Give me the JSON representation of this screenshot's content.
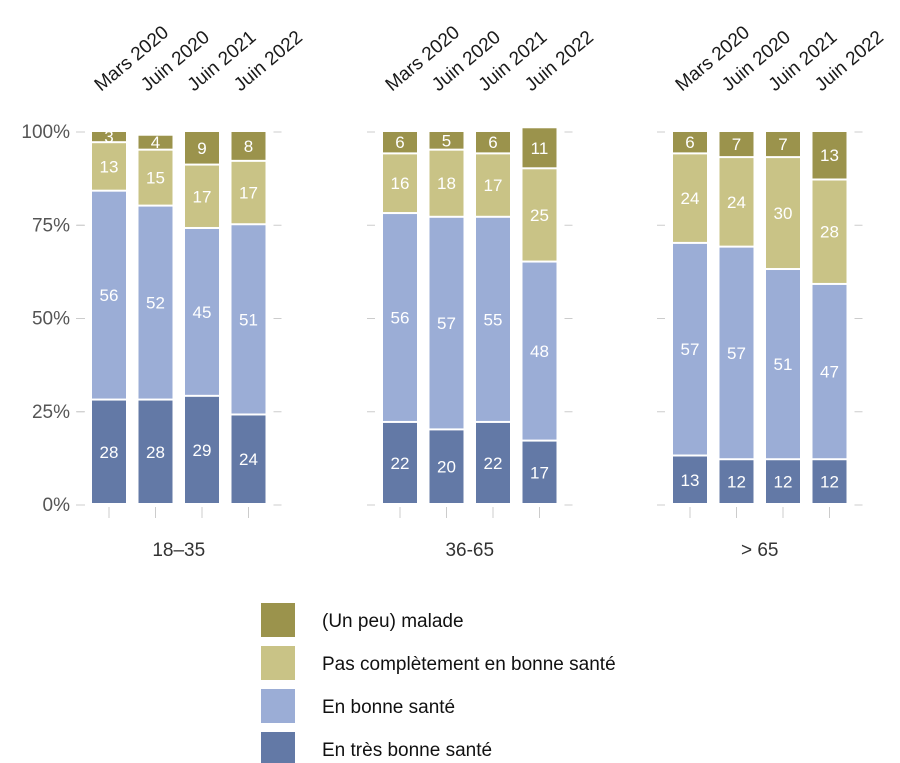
{
  "chart_data": {
    "type": "bar",
    "stacked": true,
    "percent_axis": true,
    "ylim": [
      0,
      100
    ],
    "yticks": [
      "0%",
      "25%",
      "50%",
      "75%",
      "100%"
    ],
    "yticks_values": [
      0,
      25,
      50,
      75,
      100
    ],
    "categories": [
      "Mars 2020",
      "Juin 2020",
      "Juin 2021",
      "Juin 2022"
    ],
    "groups": [
      {
        "label": "18–35",
        "bars": [
          {
            "category": "Mars 2020",
            "values": [
              28,
              56,
              13,
              3
            ]
          },
          {
            "category": "Juin 2020",
            "values": [
              28,
              52,
              15,
              4
            ]
          },
          {
            "category": "Juin 2021",
            "values": [
              29,
              45,
              17,
              9
            ]
          },
          {
            "category": "Juin 2022",
            "values": [
              24,
              51,
              17,
              8
            ]
          }
        ]
      },
      {
        "label": "36-65",
        "bars": [
          {
            "category": "Mars 2020",
            "values": [
              22,
              56,
              16,
              6
            ]
          },
          {
            "category": "Juin 2020",
            "values": [
              20,
              57,
              18,
              5
            ]
          },
          {
            "category": "Juin 2021",
            "values": [
              22,
              55,
              17,
              6
            ]
          },
          {
            "category": "Juin 2022",
            "values": [
              17,
              48,
              25,
              11
            ]
          }
        ]
      },
      {
        "label": "> 65",
        "bars": [
          {
            "category": "Mars 2020",
            "values": [
              13,
              57,
              24,
              6
            ]
          },
          {
            "category": "Juin 2020",
            "values": [
              12,
              57,
              24,
              7
            ]
          },
          {
            "category": "Juin 2021",
            "values": [
              12,
              51,
              30,
              7
            ]
          },
          {
            "category": "Juin 2022",
            "values": [
              12,
              47,
              28,
              13
            ]
          }
        ]
      }
    ],
    "series": [
      {
        "name": "En très bonne santé",
        "color": "#6379a6"
      },
      {
        "name": "En bonne santé",
        "color": "#9badd6"
      },
      {
        "name": "Pas complètement en bonne santé",
        "color": "#c9c386"
      },
      {
        "name": "(Un peu) malade",
        "color": "#9b934c"
      }
    ],
    "legend": {
      "position": "bottom",
      "order": [
        "(Un peu) malade",
        "Pas complètement en bonne santé",
        "En bonne santé",
        "En très bonne santé"
      ]
    },
    "grid": false
  }
}
